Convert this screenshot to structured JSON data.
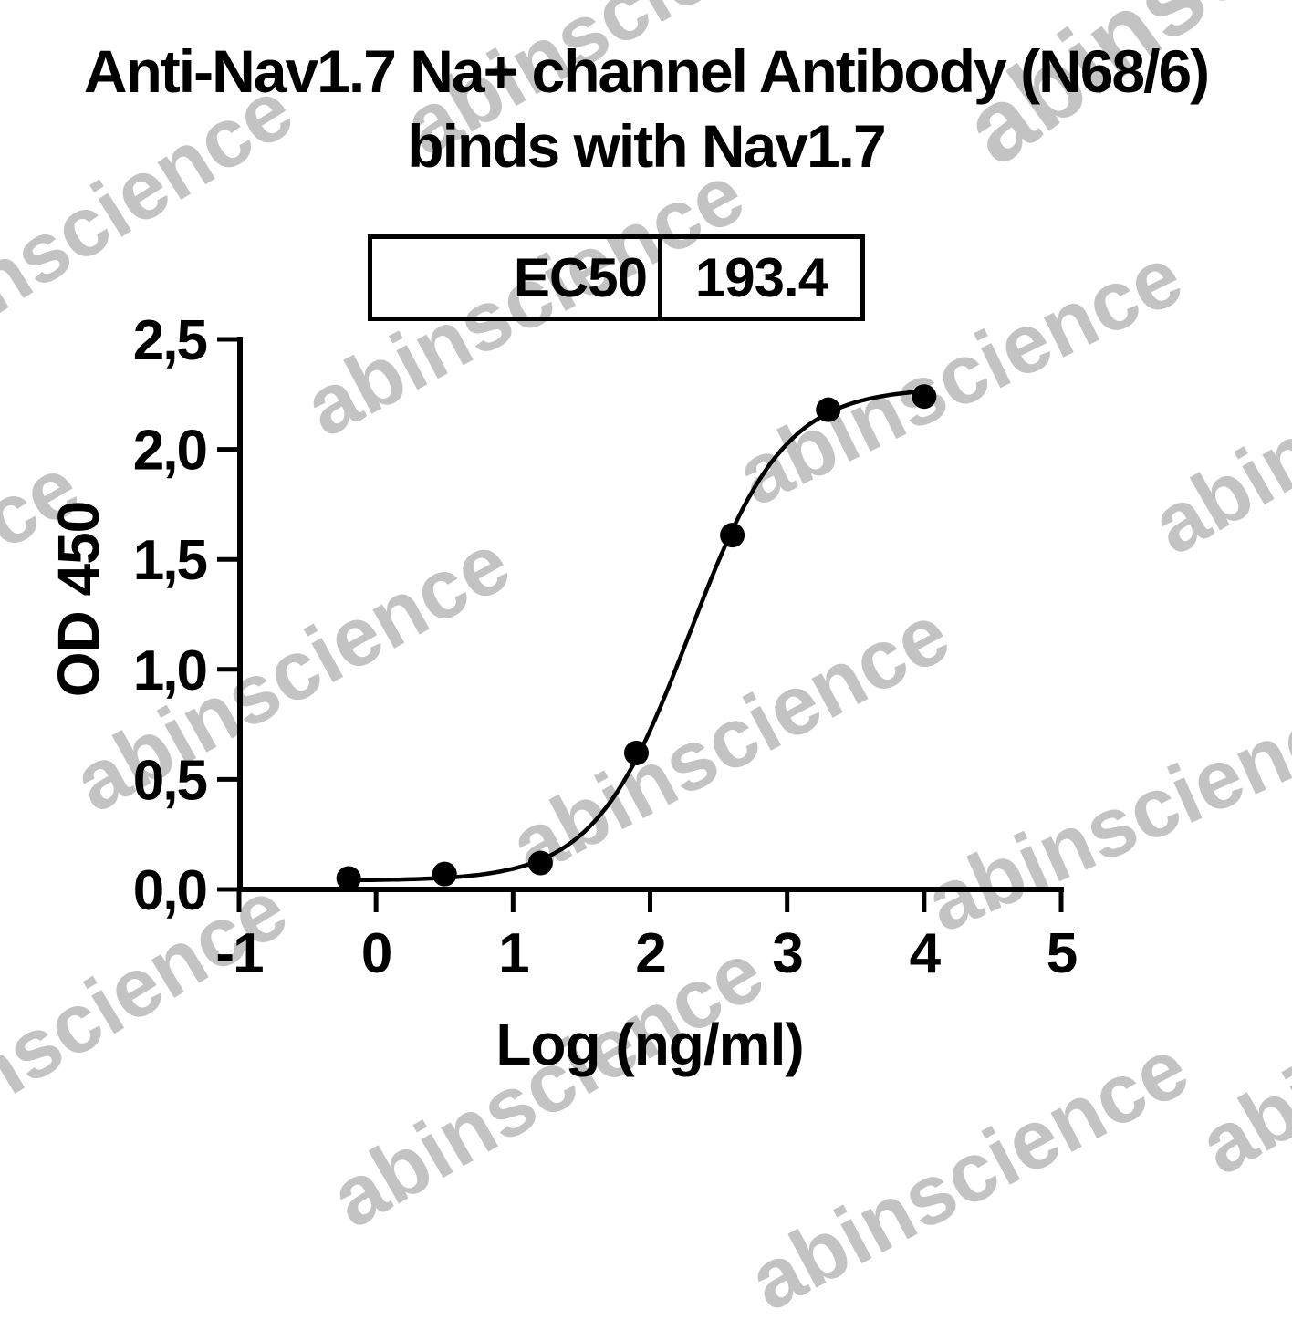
{
  "watermark": {
    "text": "abinscience",
    "color": "#c3c3c3"
  },
  "chart_data": {
    "type": "scatter",
    "title_lines": [
      "Anti-Nav1.7 Na+ channel Antibody (N68/6)",
      "binds with Nav1.7"
    ],
    "title": "Anti-Nav1.7 Na+ channel Antibody (N68/6) binds with Nav1.7",
    "ec50": {
      "label": "EC50",
      "value": "193.4"
    },
    "xlabel": "Log (ng/ml)",
    "ylabel": "OD 450",
    "xlim": [
      -1,
      5
    ],
    "ylim": [
      0,
      2.5
    ],
    "x_ticks": [
      {
        "value": -1,
        "label": "-1"
      },
      {
        "value": 0,
        "label": "0"
      },
      {
        "value": 1,
        "label": "1"
      },
      {
        "value": 2,
        "label": "2"
      },
      {
        "value": 3,
        "label": "3"
      },
      {
        "value": 4,
        "label": "4"
      },
      {
        "value": 5,
        "label": "5"
      }
    ],
    "y_ticks": [
      {
        "value": 0.0,
        "label": "0,0"
      },
      {
        "value": 0.5,
        "label": "0,5"
      },
      {
        "value": 1.0,
        "label": "1,0"
      },
      {
        "value": 1.5,
        "label": "1,5"
      },
      {
        "value": 2.0,
        "label": "2,0"
      },
      {
        "value": 2.5,
        "label": "2,5"
      }
    ],
    "points": [
      {
        "x": -0.2,
        "y": 0.05
      },
      {
        "x": 0.5,
        "y": 0.07
      },
      {
        "x": 1.2,
        "y": 0.12
      },
      {
        "x": 1.9,
        "y": 0.62
      },
      {
        "x": 2.6,
        "y": 1.61
      },
      {
        "x": 3.3,
        "y": 2.18
      },
      {
        "x": 4.0,
        "y": 2.24
      }
    ],
    "fit_curve": {
      "model": "4PL",
      "bottom": 0.04,
      "top": 2.28,
      "log_ec50": 2.2865,
      "hill": 1.25,
      "x_start": -0.2,
      "x_end": 4.0
    },
    "marker": {
      "shape": "circle",
      "color": "#000000"
    },
    "line_color": "#000000",
    "axis_color": "#000000",
    "grid": false,
    "legend": false
  }
}
